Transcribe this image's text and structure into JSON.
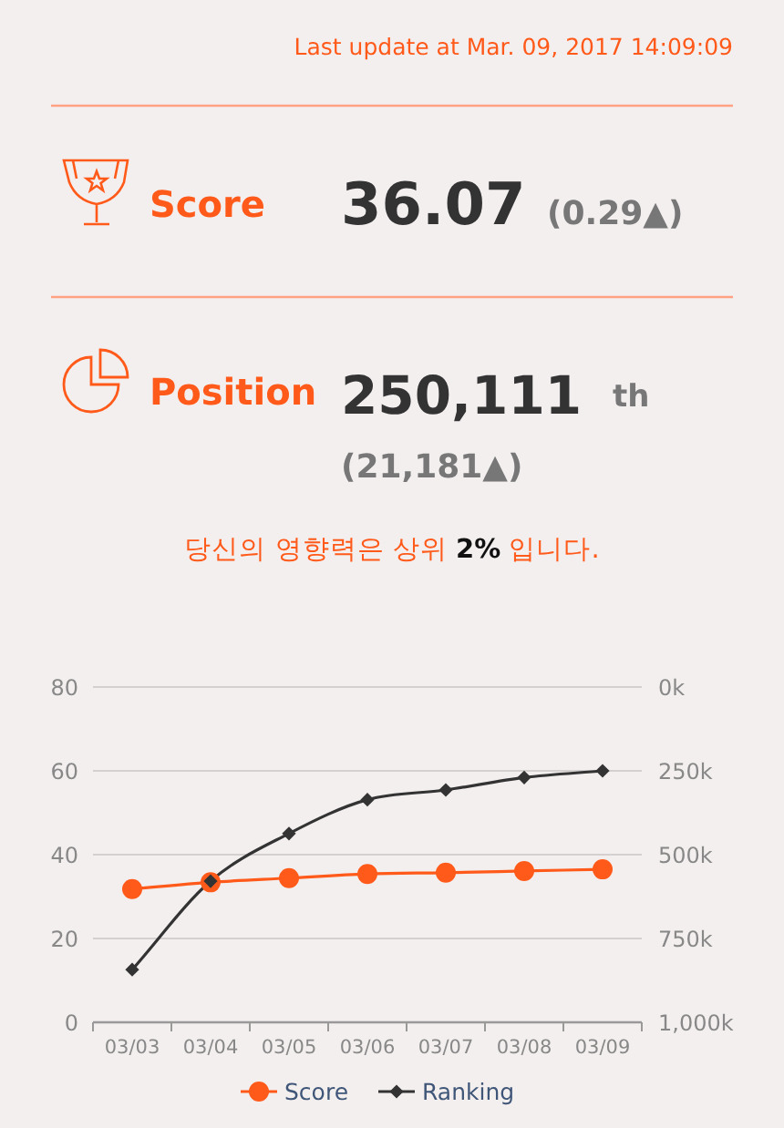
{
  "chart_data": [
    {
      "type": "other",
      "annotations": [
        "Last update at Mar. 09, 2017 14:09:09",
        "Score",
        "36.07",
        "(0.29▲)",
        "Position",
        "250,111",
        "th",
        "(21,181▲)",
        "당신의 영향력은 상위 ",
        "2%",
        " 입니다."
      ]
    },
    {
      "type": "line",
      "categories": [
        "03/03",
        "03/04",
        "03/05",
        "03/06",
        "03/07",
        "03/08",
        "03/09"
      ],
      "series": [
        {
          "name": "Score",
          "color": "#ff5a1a",
          "marker": "circle",
          "values": [
            31.8,
            33.4,
            34.4,
            35.4,
            35.7,
            36.1,
            36.5
          ]
        },
        {
          "name": "Ranking",
          "color": "#333333",
          "marker": "diamond",
          "axis": "y2",
          "values": [
            843000,
            579000,
            437000,
            336000,
            307000,
            270000,
            250000
          ]
        }
      ],
      "ylim": [
        0,
        80
      ],
      "yticks": [
        0,
        20,
        40,
        60,
        80
      ],
      "y2lim": [
        1000000,
        0
      ],
      "y2ticks": [
        {
          "value": 0,
          "label": "0k"
        },
        {
          "value": 250000,
          "label": "250k"
        },
        {
          "value": 500000,
          "label": "500k"
        },
        {
          "value": 750000,
          "label": "750k"
        },
        {
          "value": 1000000,
          "label": "1,000k"
        }
      ],
      "grid": "y",
      "legend": "bottom"
    }
  ]
}
